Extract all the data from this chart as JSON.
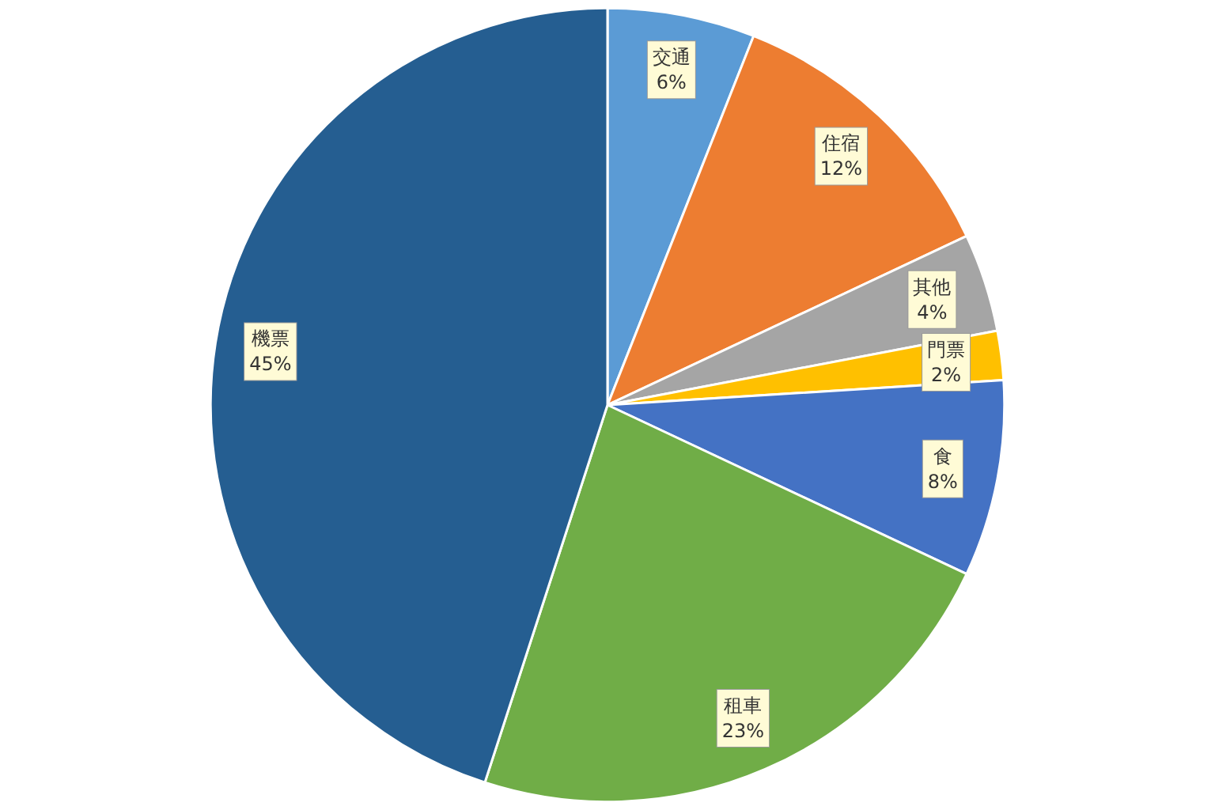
{
  "chart_data": {
    "type": "pie",
    "categories": [
      "交通",
      "住宿",
      "其他",
      "門票",
      "食",
      "租車",
      "機票"
    ],
    "values": [
      6,
      12,
      4,
      2,
      8,
      23,
      45
    ],
    "value_labels": [
      "6%",
      "12%",
      "4%",
      "2%",
      "8%",
      "23%",
      "45%"
    ],
    "colors": [
      "#5b9bd5",
      "#ed7d31",
      "#a5a5a5",
      "#ffc000",
      "#4472c4",
      "#70ad47",
      "#255e91"
    ],
    "legend": false
  }
}
